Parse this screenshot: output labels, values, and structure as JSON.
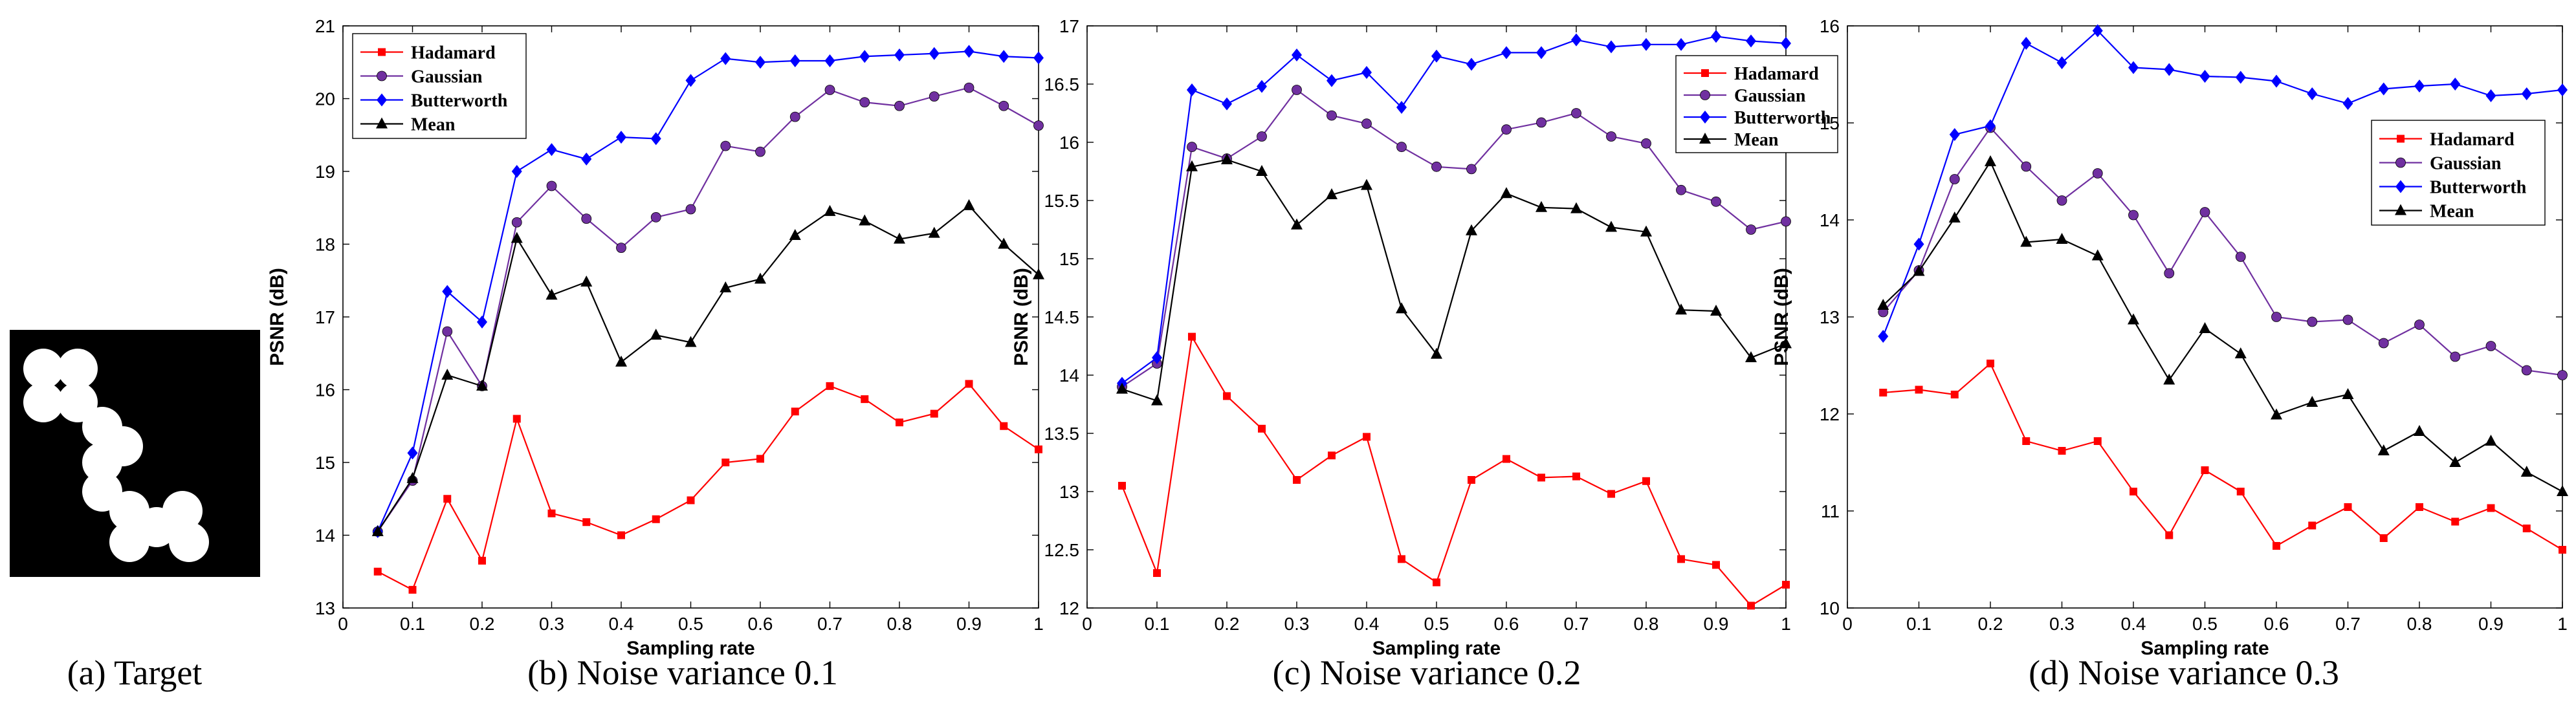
{
  "captions": [
    "(a) Target",
    "(b) Noise variance 0.1",
    "(c) Noise variance 0.2",
    "(d) Noise variance 0.3"
  ],
  "colors": {
    "Hadamard": "#ff0000",
    "Gaussian": "#7030a0",
    "Butterworth": "#0000ff",
    "Mean": "#000000"
  },
  "chart_data": [
    {
      "type": "line",
      "caption": "(b) Noise variance 0.1",
      "xlabel": "Sampling rate",
      "ylabel": "PSNR (dB)",
      "xlim": [
        0,
        1
      ],
      "ylim": [
        13,
        21
      ],
      "xticks": [
        0,
        0.1,
        0.2,
        0.3,
        0.4,
        0.5,
        0.6,
        0.7,
        0.8,
        0.9,
        1
      ],
      "yticks": [
        13,
        14,
        15,
        16,
        17,
        18,
        19,
        20,
        21
      ],
      "legend_position": "top-left",
      "x": [
        0.05,
        0.1,
        0.15,
        0.2,
        0.25,
        0.3,
        0.35,
        0.4,
        0.45,
        0.5,
        0.55,
        0.6,
        0.65,
        0.7,
        0.75,
        0.8,
        0.85,
        0.9,
        0.95,
        1.0
      ],
      "series": [
        {
          "name": "Hadamard",
          "marker": "square",
          "values": [
            13.5,
            13.25,
            14.5,
            13.65,
            15.6,
            14.3,
            14.18,
            14.0,
            14.22,
            14.48,
            15.0,
            15.05,
            15.7,
            16.05,
            15.87,
            15.55,
            15.67,
            16.08,
            15.5,
            15.18
          ]
        },
        {
          "name": "Gaussian",
          "marker": "circle",
          "values": [
            14.05,
            14.75,
            16.8,
            16.05,
            18.3,
            18.8,
            18.35,
            17.95,
            18.37,
            18.48,
            19.35,
            19.27,
            19.75,
            20.12,
            19.95,
            19.9,
            20.03,
            20.15,
            19.9,
            19.63
          ]
        },
        {
          "name": "Butterworth",
          "marker": "diamond",
          "values": [
            14.05,
            15.13,
            17.35,
            16.93,
            19.0,
            19.3,
            19.17,
            19.47,
            19.45,
            20.25,
            20.55,
            20.5,
            20.52,
            20.52,
            20.58,
            20.6,
            20.62,
            20.65,
            20.58,
            20.56
          ]
        },
        {
          "name": "Mean",
          "marker": "triangle",
          "values": [
            14.05,
            14.78,
            16.2,
            16.05,
            18.08,
            17.3,
            17.48,
            16.38,
            16.75,
            16.65,
            17.4,
            17.52,
            18.12,
            18.45,
            18.32,
            18.07,
            18.15,
            18.53,
            18.0,
            17.58
          ]
        }
      ]
    },
    {
      "type": "line",
      "caption": "(c) Noise variance 0.2",
      "xlabel": "Sampling rate",
      "ylabel": "PSNR (dB)",
      "xlim": [
        0,
        1
      ],
      "ylim": [
        12,
        17
      ],
      "xticks": [
        0,
        0.1,
        0.2,
        0.3,
        0.4,
        0.5,
        0.6,
        0.7,
        0.8,
        0.9,
        1
      ],
      "yticks": [
        12,
        12.5,
        13,
        13.5,
        14,
        14.5,
        15,
        15.5,
        16,
        16.5,
        17
      ],
      "legend_position": "top-right",
      "x": [
        0.05,
        0.1,
        0.15,
        0.2,
        0.25,
        0.3,
        0.35,
        0.4,
        0.45,
        0.5,
        0.55,
        0.6,
        0.65,
        0.7,
        0.75,
        0.8,
        0.85,
        0.9,
        0.95,
        1.0
      ],
      "series": [
        {
          "name": "Hadamard",
          "marker": "square",
          "values": [
            13.05,
            12.3,
            14.33,
            13.82,
            13.54,
            13.1,
            13.31,
            13.47,
            12.42,
            12.22,
            13.1,
            13.28,
            13.12,
            13.13,
            12.98,
            13.09,
            12.42,
            12.37,
            12.02,
            12.2
          ]
        },
        {
          "name": "Gaussian",
          "marker": "circle",
          "values": [
            13.9,
            14.1,
            15.96,
            15.86,
            16.05,
            16.45,
            16.23,
            16.16,
            15.96,
            15.79,
            15.77,
            16.11,
            16.17,
            16.25,
            16.05,
            15.99,
            15.59,
            15.49,
            15.25,
            15.32
          ]
        },
        {
          "name": "Butterworth",
          "marker": "diamond",
          "values": [
            13.93,
            14.15,
            16.45,
            16.33,
            16.48,
            16.75,
            16.53,
            16.6,
            16.3,
            16.74,
            16.67,
            16.77,
            16.77,
            16.88,
            16.82,
            16.84,
            16.84,
            16.91,
            16.87,
            16.85
          ]
        },
        {
          "name": "Mean",
          "marker": "triangle",
          "values": [
            13.88,
            13.78,
            15.79,
            15.85,
            15.75,
            15.29,
            15.55,
            15.63,
            14.57,
            14.18,
            15.24,
            15.56,
            15.44,
            15.43,
            15.27,
            15.23,
            14.56,
            14.55,
            14.15,
            14.27
          ]
        }
      ]
    },
    {
      "type": "line",
      "caption": "(d) Noise variance 0.3",
      "xlabel": "Sampling rate",
      "ylabel": "PSNR (dB)",
      "xlim": [
        0,
        1
      ],
      "ylim": [
        10,
        16
      ],
      "xticks": [
        0,
        0.1,
        0.2,
        0.3,
        0.4,
        0.5,
        0.6,
        0.7,
        0.8,
        0.9,
        1
      ],
      "yticks": [
        10,
        11,
        12,
        13,
        14,
        15,
        16
      ],
      "legend_position": "top-right",
      "x": [
        0.05,
        0.1,
        0.15,
        0.2,
        0.25,
        0.3,
        0.35,
        0.4,
        0.45,
        0.5,
        0.55,
        0.6,
        0.65,
        0.7,
        0.75,
        0.8,
        0.85,
        0.9,
        0.95,
        1.0
      ],
      "series": [
        {
          "name": "Hadamard",
          "marker": "square",
          "values": [
            12.22,
            12.25,
            12.2,
            12.52,
            11.72,
            11.62,
            11.72,
            11.2,
            10.75,
            11.42,
            11.2,
            10.64,
            10.85,
            11.04,
            10.72,
            11.04,
            10.89,
            11.03,
            10.82,
            10.6
          ]
        },
        {
          "name": "Gaussian",
          "marker": "circle",
          "values": [
            13.05,
            13.48,
            14.42,
            14.95,
            14.55,
            14.2,
            14.48,
            14.05,
            13.45,
            14.08,
            13.62,
            13.0,
            12.95,
            12.97,
            12.73,
            12.92,
            12.59,
            12.7,
            12.45,
            12.4
          ]
        },
        {
          "name": "Butterworth",
          "marker": "diamond",
          "values": [
            12.8,
            13.75,
            14.88,
            14.97,
            15.82,
            15.62,
            15.95,
            15.57,
            15.55,
            15.48,
            15.47,
            15.43,
            15.3,
            15.2,
            15.35,
            15.38,
            15.4,
            15.28,
            15.3,
            15.34
          ]
        },
        {
          "name": "Mean",
          "marker": "triangle",
          "values": [
            13.12,
            13.47,
            14.02,
            14.6,
            13.77,
            13.8,
            13.63,
            12.97,
            12.35,
            12.88,
            12.62,
            11.99,
            12.12,
            12.2,
            11.62,
            11.82,
            11.5,
            11.72,
            11.4,
            11.2
          ]
        }
      ]
    }
  ]
}
